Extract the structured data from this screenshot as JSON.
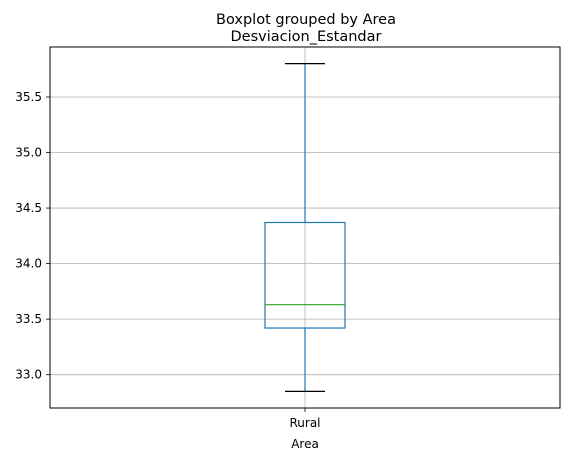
{
  "chart_data": {
    "type": "boxplot",
    "suptitle": "Boxplot grouped by Area",
    "title": "Desviacion_Estandar",
    "xlabel": "Area",
    "ylabel": "",
    "categories": [
      "Rural"
    ],
    "boxes": [
      {
        "category": "Rural",
        "whisker_low": 32.85,
        "q1": 33.42,
        "median": 33.63,
        "q3": 34.37,
        "whisker_high": 35.8
      }
    ],
    "ylim": [
      32.7,
      35.95
    ],
    "yticks": [
      33.0,
      33.5,
      34.0,
      34.5,
      35.0,
      35.5
    ],
    "ytick_labels": [
      "33.0",
      "33.5",
      "34.0",
      "34.5",
      "35.0",
      "35.5"
    ],
    "grid": true,
    "colors": {
      "box": "#1f77b4",
      "median": "#2ca02c",
      "whisker": "#1f77b4",
      "cap": "#000000",
      "grid": "#b0b0b0"
    }
  }
}
